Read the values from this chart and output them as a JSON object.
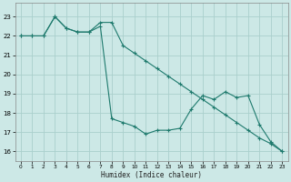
{
  "xlabel": "Humidex (Indice chaleur)",
  "xlim": [
    -0.5,
    23.5
  ],
  "ylim": [
    15.5,
    23.7
  ],
  "yticks": [
    16,
    17,
    18,
    19,
    20,
    21,
    22,
    23
  ],
  "xticks": [
    0,
    1,
    2,
    3,
    4,
    5,
    6,
    7,
    8,
    9,
    10,
    11,
    12,
    13,
    14,
    15,
    16,
    17,
    18,
    19,
    20,
    21,
    22,
    23
  ],
  "bg_color": "#cce8e6",
  "grid_color": "#aacfcc",
  "line_color": "#1e7a6d",
  "line1_x": [
    0,
    1,
    2,
    3,
    4,
    5,
    6,
    7,
    8,
    9,
    10,
    11,
    12,
    13,
    14,
    15,
    16,
    17,
    18,
    19,
    20,
    21,
    22,
    23
  ],
  "line1_y": [
    22.0,
    22.0,
    22.0,
    23.0,
    22.4,
    22.2,
    22.2,
    22.7,
    22.7,
    21.5,
    21.1,
    20.7,
    20.3,
    19.9,
    19.5,
    19.1,
    18.7,
    18.3,
    17.9,
    17.5,
    17.1,
    16.7,
    16.4,
    16.0
  ],
  "line2_x": [
    0,
    1,
    2,
    3,
    4,
    5,
    6,
    7,
    8,
    9,
    10,
    11,
    12,
    13,
    14,
    15,
    16,
    17,
    18,
    19,
    20,
    21,
    22,
    23
  ],
  "line2_y": [
    22.0,
    22.0,
    22.0,
    23.0,
    22.4,
    22.2,
    22.2,
    22.5,
    17.7,
    17.5,
    17.3,
    16.9,
    17.1,
    17.1,
    17.2,
    18.2,
    18.9,
    18.7,
    19.1,
    18.8,
    18.9,
    17.4,
    16.5,
    16.0
  ]
}
